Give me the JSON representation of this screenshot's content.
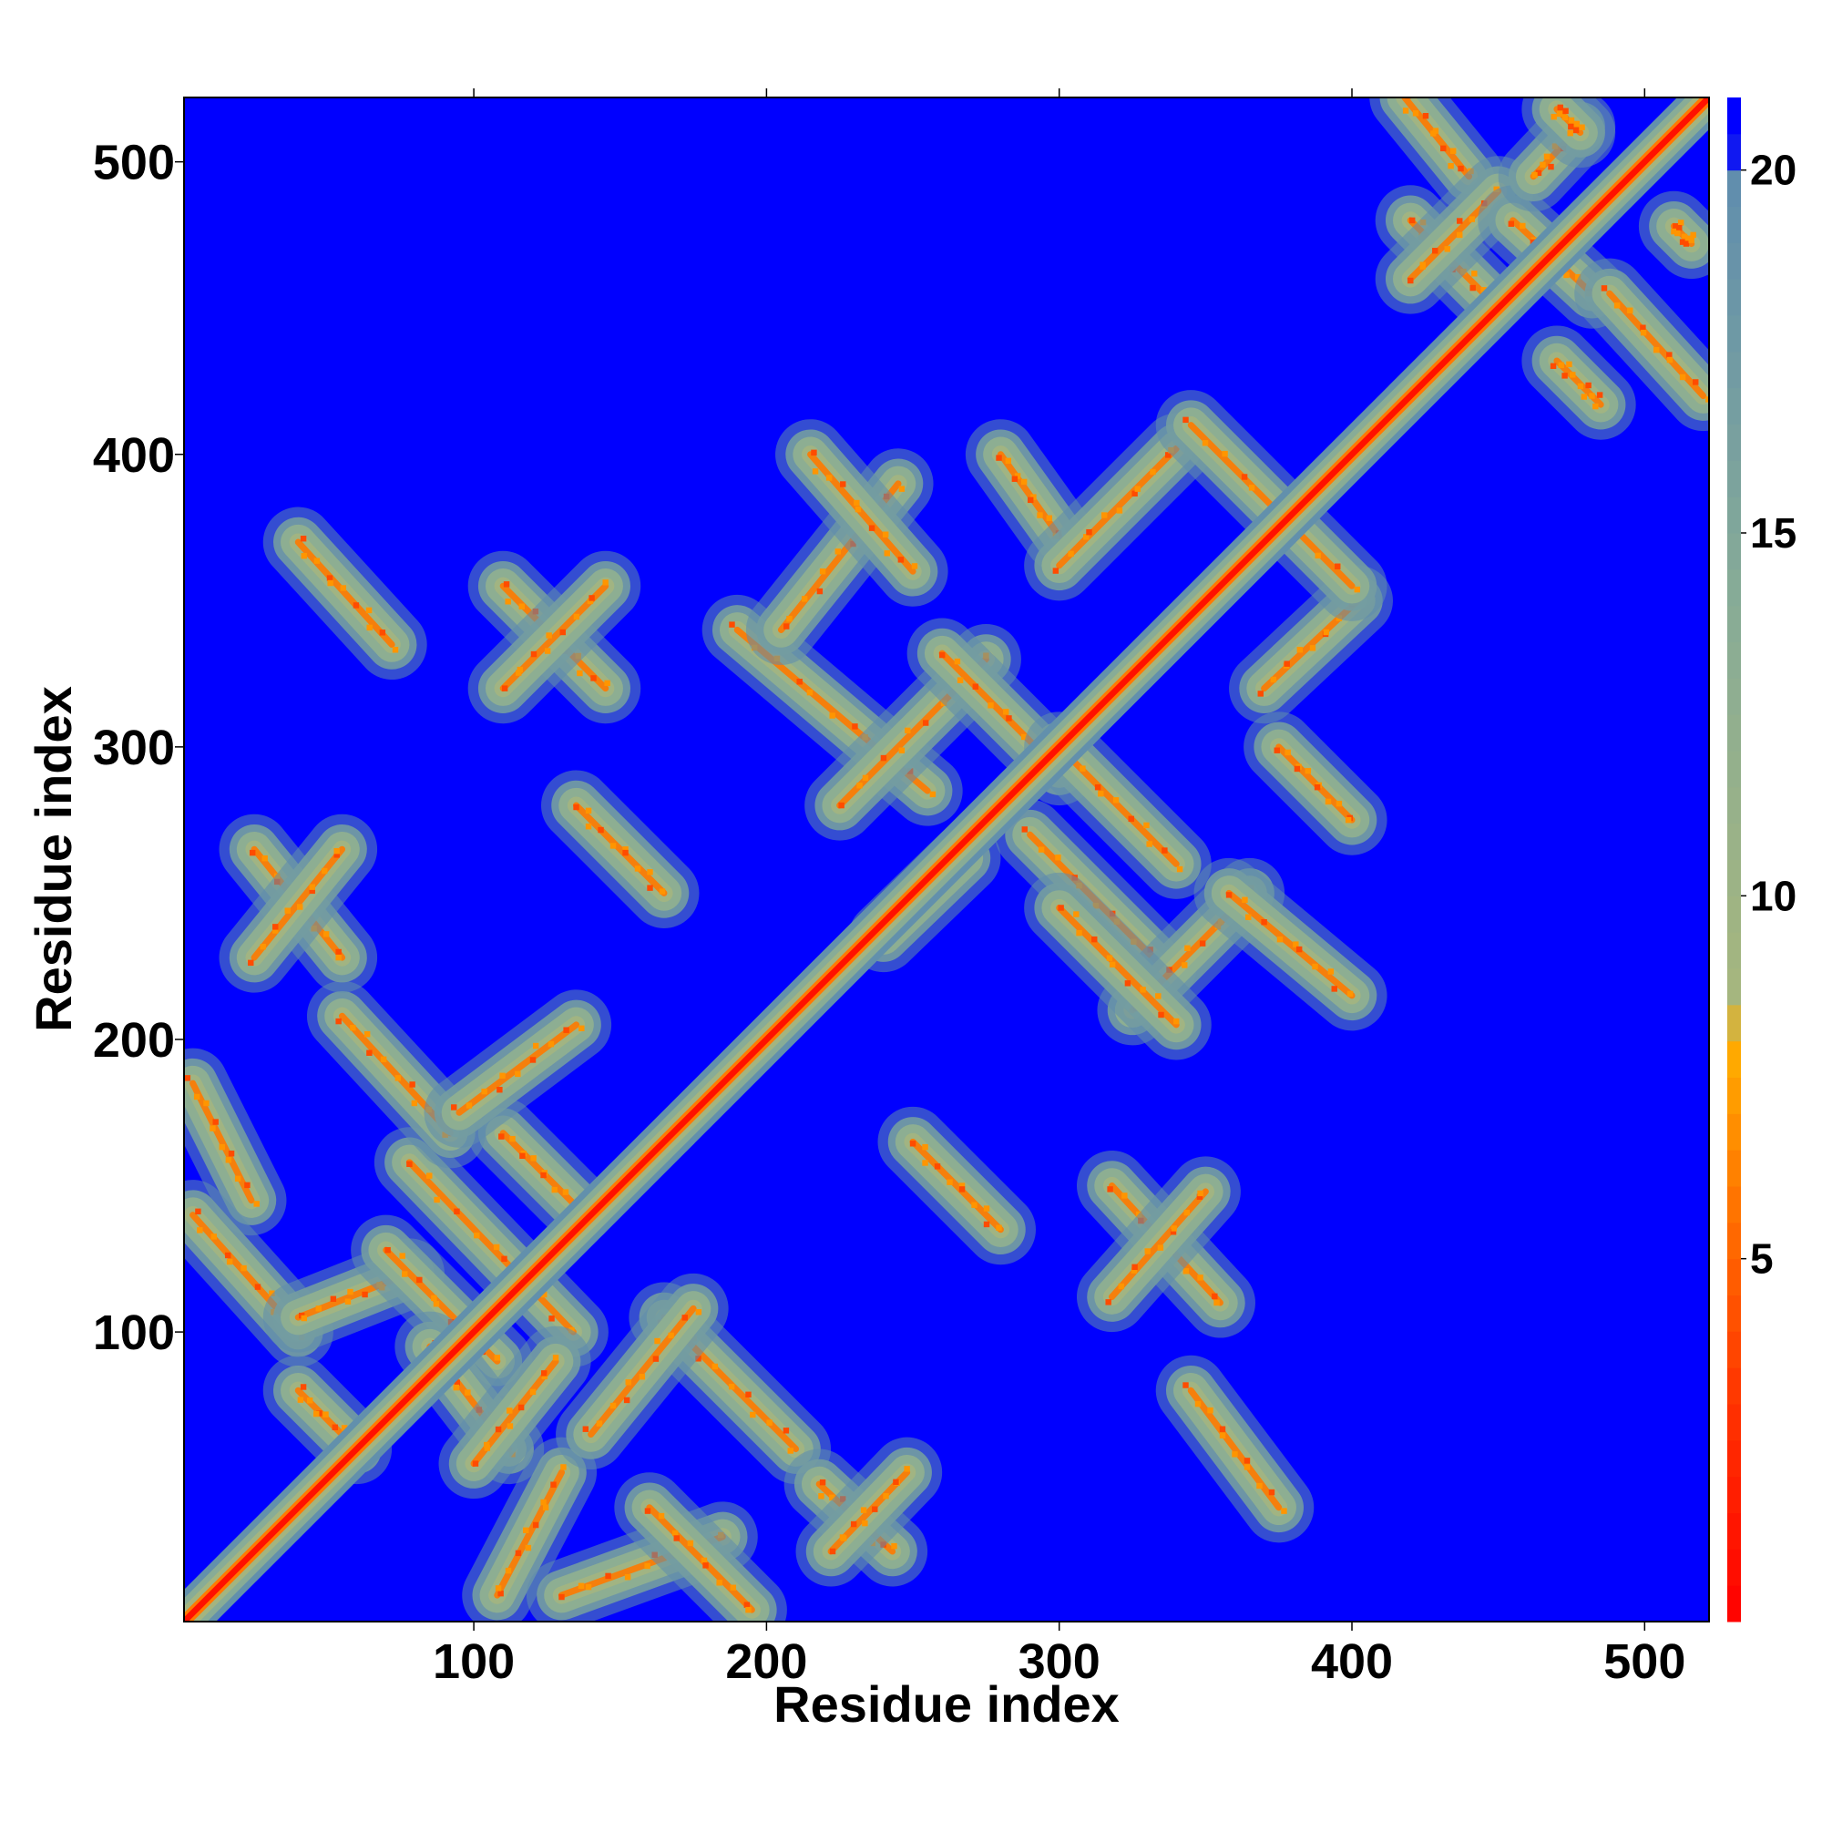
{
  "chart_data": {
    "type": "heatmap",
    "title": "",
    "xlabel": "Residue index",
    "ylabel": "Residue index",
    "xlim": [
      1,
      522
    ],
    "ylim": [
      1,
      522
    ],
    "x_ticks": [
      100,
      200,
      300,
      400,
      500
    ],
    "y_ticks": [
      100,
      200,
      300,
      400,
      500
    ],
    "colorbar": {
      "range": [
        0,
        21
      ],
      "ticks": [
        5,
        10,
        15,
        20
      ],
      "stops": [
        {
          "value": 0,
          "color": "#ff0000"
        },
        {
          "value": 3,
          "color": "#ff3300"
        },
        {
          "value": 6,
          "color": "#ff7a00"
        },
        {
          "value": 8,
          "color": "#ffb000"
        },
        {
          "value": 8.5,
          "color": "#a6b67e"
        },
        {
          "value": 14,
          "color": "#88ac96"
        },
        {
          "value": 20,
          "color": "#5f8dae"
        },
        {
          "value": 20.3,
          "color": "#0000ff"
        },
        {
          "value": 21,
          "color": "#0000ff"
        }
      ]
    },
    "background_value": 21,
    "diagonal": {
      "core_value": 1,
      "half_width_residues": 7
    },
    "features": [
      {
        "kind": "antiparallel",
        "x": [
          4,
          24
        ],
        "y": [
          185,
          145
        ]
      },
      {
        "kind": "parallel",
        "x": [
          4,
          40
        ],
        "y": [
          140,
          100
        ]
      },
      {
        "kind": "antiparallel",
        "x": [
          40,
          78
        ],
        "y": [
          105,
          120
        ]
      },
      {
        "kind": "parallel",
        "x": [
          70,
          108
        ],
        "y": [
          128,
          90
        ]
      },
      {
        "kind": "antiparallel",
        "x": [
          78,
          134
        ],
        "y": [
          158,
          100
        ]
      },
      {
        "kind": "parallel",
        "x": [
          110,
          136
        ],
        "y": [
          168,
          142
        ]
      },
      {
        "kind": "antiparallel",
        "x": [
          55,
          92
        ],
        "y": [
          208,
          168
        ]
      },
      {
        "kind": "parallel",
        "x": [
          95,
          135
        ],
        "y": [
          175,
          205
        ]
      },
      {
        "kind": "antiparallel",
        "x": [
          85,
          112
        ],
        "y": [
          95,
          60
        ]
      },
      {
        "kind": "parallel",
        "x": [
          108,
          130
        ],
        "y": [
          10,
          52
        ]
      },
      {
        "kind": "antiparallel",
        "x": [
          100,
          128
        ],
        "y": [
          55,
          90
        ]
      },
      {
        "kind": "antiparallel",
        "x": [
          130,
          185
        ],
        "y": [
          10,
          30
        ]
      },
      {
        "kind": "parallel",
        "x": [
          160,
          195
        ],
        "y": [
          40,
          5
        ]
      },
      {
        "kind": "antiparallel",
        "x": [
          165,
          210
        ],
        "y": [
          105,
          60
        ]
      },
      {
        "kind": "parallel",
        "x": [
          140,
          175
        ],
        "y": [
          65,
          108
        ]
      },
      {
        "kind": "antiparallel",
        "x": [
          40,
          60
        ],
        "y": [
          80,
          60
        ]
      },
      {
        "kind": "antiparallel",
        "x": [
          218,
          243
        ],
        "y": [
          48,
          25
        ]
      },
      {
        "kind": "parallel",
        "x": [
          222,
          248
        ],
        "y": [
          25,
          52
        ]
      },
      {
        "kind": "antiparallel",
        "x": [
          250,
          280
        ],
        "y": [
          165,
          135
        ]
      },
      {
        "kind": "antiparallel",
        "x": [
          318,
          355
        ],
        "y": [
          150,
          110
        ]
      },
      {
        "kind": "parallel",
        "x": [
          318,
          350
        ],
        "y": [
          112,
          148
        ]
      },
      {
        "kind": "antiparallel",
        "x": [
          345,
          375
        ],
        "y": [
          80,
          40
        ]
      },
      {
        "kind": "antiparallel",
        "x": [
          40,
          72
        ],
        "y": [
          370,
          335
        ]
      },
      {
        "kind": "antiparallel",
        "x": [
          110,
          145
        ],
        "y": [
          355,
          320
        ]
      },
      {
        "kind": "parallel",
        "x": [
          110,
          145
        ],
        "y": [
          320,
          355
        ]
      },
      {
        "kind": "antiparallel",
        "x": [
          135,
          165
        ],
        "y": [
          280,
          250
        ]
      },
      {
        "kind": "antiparallel",
        "x": [
          25,
          55
        ],
        "y": [
          265,
          228
        ]
      },
      {
        "kind": "parallel",
        "x": [
          25,
          55
        ],
        "y": [
          228,
          265
        ]
      },
      {
        "kind": "antiparallel",
        "x": [
          190,
          255
        ],
        "y": [
          340,
          285
        ]
      },
      {
        "kind": "parallel",
        "x": [
          205,
          245
        ],
        "y": [
          340,
          390
        ]
      },
      {
        "kind": "antiparallel",
        "x": [
          215,
          250
        ],
        "y": [
          400,
          360
        ]
      },
      {
        "kind": "parallel",
        "x": [
          225,
          275
        ],
        "y": [
          280,
          330
        ]
      },
      {
        "kind": "antiparallel",
        "x": [
          260,
          300
        ],
        "y": [
          332,
          292
        ]
      },
      {
        "kind": "antiparallel",
        "x": [
          280,
          300
        ],
        "y": [
          400,
          372
        ]
      },
      {
        "kind": "parallel",
        "x": [
          300,
          340
        ],
        "y": [
          362,
          402
        ]
      },
      {
        "kind": "antiparallel",
        "x": [
          290,
          335
        ],
        "y": [
          270,
          225
        ]
      },
      {
        "kind": "parallel",
        "x": [
          300,
          340
        ],
        "y": [
          300,
          260
        ]
      },
      {
        "kind": "parallel",
        "x": [
          325,
          365
        ],
        "y": [
          210,
          250
        ]
      },
      {
        "kind": "antiparallel",
        "x": [
          300,
          340
        ],
        "y": [
          245,
          205
        ]
      },
      {
        "kind": "antiparallel",
        "x": [
          358,
          400
        ],
        "y": [
          250,
          215
        ]
      },
      {
        "kind": "antiparallel",
        "x": [
          375,
          400
        ],
        "y": [
          300,
          275
        ]
      },
      {
        "kind": "parallel",
        "x": [
          370,
          402
        ],
        "y": [
          320,
          350
        ]
      },
      {
        "kind": "antiparallel",
        "x": [
          345,
          400
        ],
        "y": [
          410,
          355
        ]
      },
      {
        "kind": "parallel",
        "x": [
          240,
          268
        ],
        "y": [
          235,
          262
        ]
      },
      {
        "kind": "antiparallel",
        "x": [
          418,
          440
        ],
        "y": [
          522,
          495
        ]
      },
      {
        "kind": "antiparallel",
        "x": [
          420,
          445
        ],
        "y": [
          480,
          455
        ]
      },
      {
        "kind": "parallel",
        "x": [
          420,
          450
        ],
        "y": [
          460,
          490
        ]
      },
      {
        "kind": "antiparallel",
        "x": [
          455,
          482
        ],
        "y": [
          480,
          455
        ]
      },
      {
        "kind": "antiparallel",
        "x": [
          470,
          485
        ],
        "y": [
          432,
          417
        ]
      },
      {
        "kind": "antiparallel",
        "x": [
          488,
          520
        ],
        "y": [
          455,
          420
        ]
      },
      {
        "kind": "parallel",
        "x": [
          462,
          478
        ],
        "y": [
          495,
          512
        ]
      },
      {
        "kind": "antiparallel",
        "x": [
          470,
          478
        ],
        "y": [
          518,
          510
        ]
      },
      {
        "kind": "antiparallel",
        "x": [
          510,
          516
        ],
        "y": [
          478,
          472
        ]
      }
    ]
  },
  "colors": {
    "frame": "#000000",
    "background": "#0000ff"
  }
}
